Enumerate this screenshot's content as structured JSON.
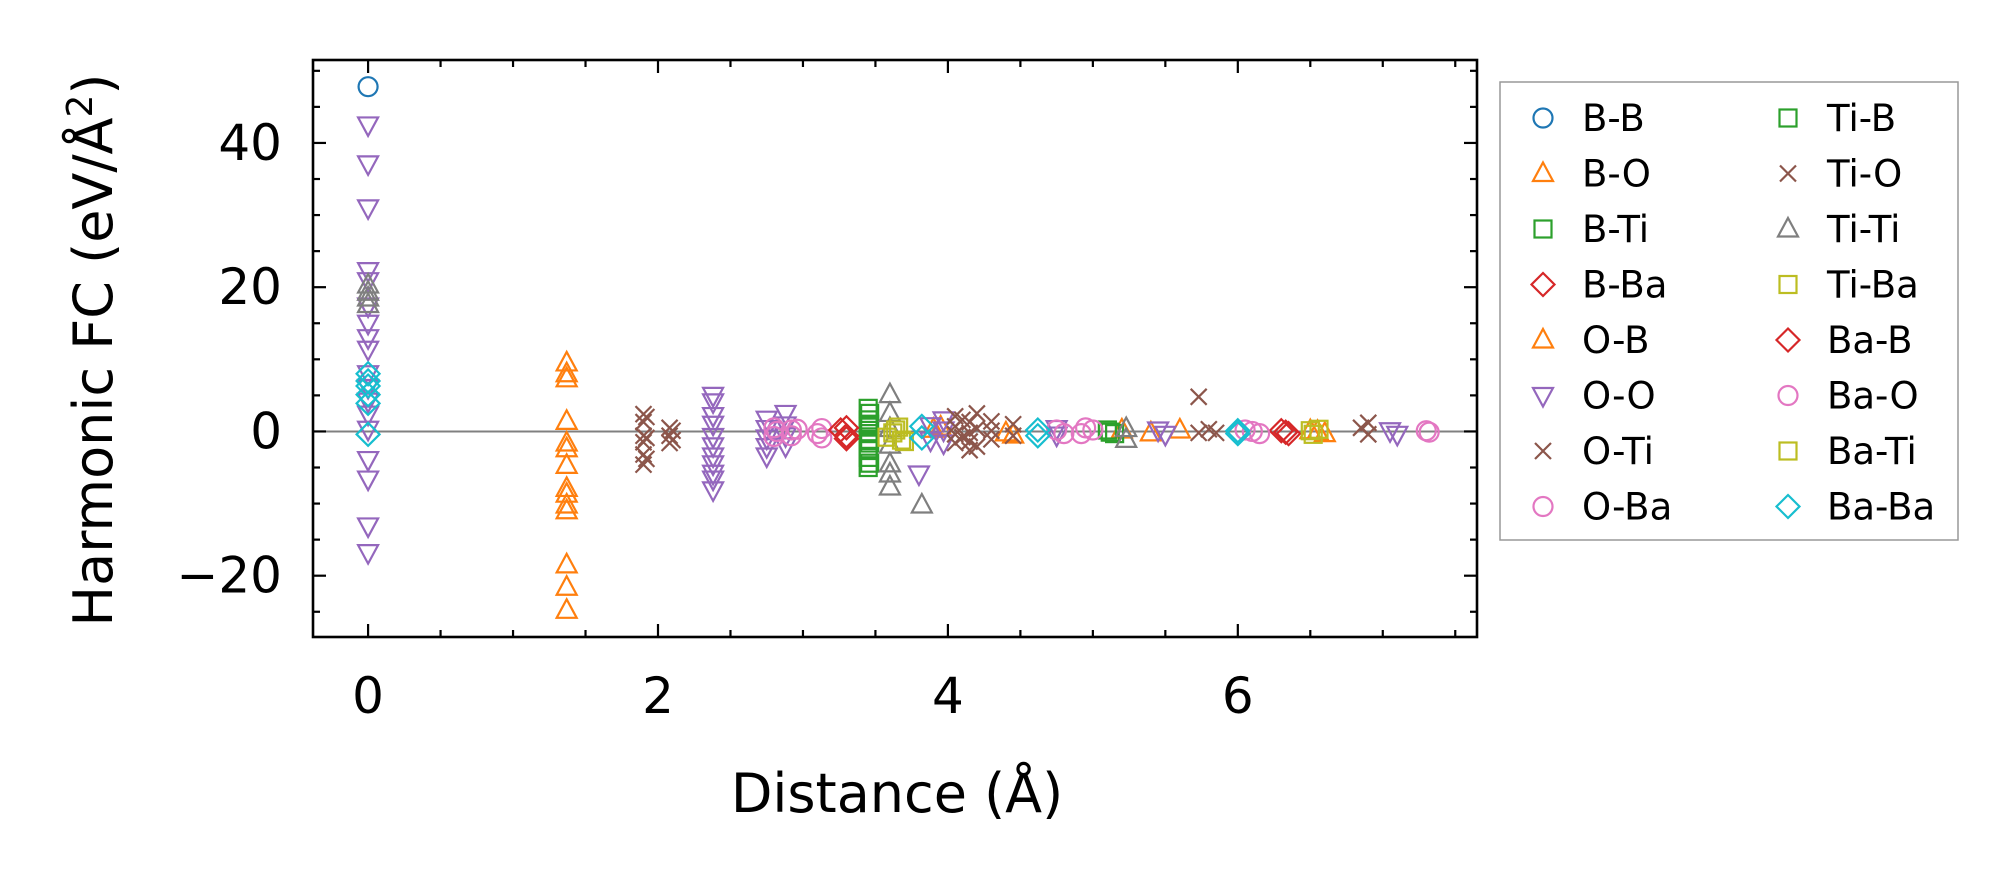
{
  "chart_data": {
    "type": "scatter",
    "xlabel": "Distance (Å)",
    "ylabel_main": "Harmonic FC (eV/Å",
    "ylabel_sup": "2",
    "ylabel_end": ")",
    "xlim": [
      -0.38,
      7.65
    ],
    "ylim": [
      -28.5,
      51.5
    ],
    "xticks": [
      0,
      2,
      4,
      6
    ],
    "yticks": [
      -20,
      0,
      20,
      40
    ],
    "xtick_labels": [
      "0",
      "2",
      "4",
      "6"
    ],
    "ytick_labels": [
      "−20",
      "0",
      "20",
      "40"
    ],
    "zero_line": 0,
    "grid": false,
    "legend_position": "outside-right",
    "legend_columns": 2,
    "series": [
      {
        "name": "B-B",
        "marker": "circle",
        "filled": false,
        "color": "#1f77b4",
        "points": [
          [
            0,
            47.8
          ]
        ]
      },
      {
        "name": "B-O",
        "marker": "triangle-up",
        "filled": false,
        "color": "#ff7f0e",
        "points": [
          [
            1.37,
            9.5
          ],
          [
            1.37,
            8.0
          ],
          [
            1.37,
            7.3
          ],
          [
            1.37,
            1.4
          ],
          [
            1.37,
            -1.6
          ],
          [
            1.37,
            -2.4
          ],
          [
            1.37,
            -4.7
          ],
          [
            1.37,
            -7.9
          ],
          [
            1.37,
            -8.7
          ],
          [
            1.37,
            -10.2
          ],
          [
            1.37,
            -11.0
          ],
          [
            1.37,
            -18.5
          ],
          [
            1.37,
            -21.6
          ],
          [
            1.37,
            -24.8
          ],
          [
            3.9,
            0.3
          ],
          [
            4.45,
            -0.5
          ],
          [
            5.2,
            0.2
          ],
          [
            5.4,
            -0.2
          ],
          [
            6.5,
            0.1
          ],
          [
            6.6,
            -0.3
          ]
        ]
      },
      {
        "name": "B-Ti",
        "marker": "square",
        "filled": false,
        "color": "#2ca02c",
        "points": [
          [
            3.45,
            3.2
          ],
          [
            3.45,
            1.6
          ],
          [
            3.45,
            0.6
          ],
          [
            3.45,
            -0.3
          ],
          [
            3.45,
            -1.1
          ],
          [
            3.45,
            -2.4
          ],
          [
            3.45,
            -3.6
          ],
          [
            3.45,
            -5.0
          ],
          [
            5.1,
            0.2
          ],
          [
            5.15,
            -0.3
          ]
        ]
      },
      {
        "name": "B-Ba",
        "marker": "diamond",
        "filled": false,
        "color": "#d62728",
        "points": [
          [
            3.3,
            0.5
          ],
          [
            3.3,
            -0.6
          ],
          [
            6.3,
            0.1
          ],
          [
            6.35,
            -0.3
          ]
        ]
      },
      {
        "name": "O-B",
        "marker": "triangle-up",
        "filled": false,
        "color": "#ff7f0e",
        "points": [
          [
            3.95,
            0.6
          ],
          [
            4.4,
            -0.2
          ],
          [
            5.6,
            0.2
          ],
          [
            6.55,
            0.0
          ]
        ]
      },
      {
        "name": "O-O",
        "marker": "triangle-down",
        "filled": false,
        "color": "#9467bd",
        "points": [
          [
            0,
            42.5
          ],
          [
            0,
            37.1
          ],
          [
            0,
            31.0
          ],
          [
            0,
            22.3
          ],
          [
            0,
            20.9
          ],
          [
            0,
            17.4
          ],
          [
            0,
            15.0
          ],
          [
            0,
            13.0
          ],
          [
            0,
            11.4
          ],
          [
            0,
            8.0
          ],
          [
            0,
            6.1
          ],
          [
            0,
            4.2
          ],
          [
            0,
            2.4
          ],
          [
            0,
            0.3
          ],
          [
            0,
            -3.9
          ],
          [
            0,
            -6.6
          ],
          [
            0,
            -13.1
          ],
          [
            0,
            -16.8
          ],
          [
            2.38,
            5.0
          ],
          [
            2.38,
            4.1
          ],
          [
            2.38,
            2.2
          ],
          [
            2.38,
            1.0
          ],
          [
            2.38,
            -0.7
          ],
          [
            2.38,
            -2.0
          ],
          [
            2.38,
            -3.4
          ],
          [
            2.38,
            -4.5
          ],
          [
            2.38,
            -5.8
          ],
          [
            2.38,
            -6.6
          ],
          [
            2.38,
            -8.1
          ],
          [
            2.75,
            1.7
          ],
          [
            2.75,
            0.4
          ],
          [
            2.75,
            -0.9
          ],
          [
            2.75,
            -2.1
          ],
          [
            2.75,
            -3.4
          ],
          [
            2.88,
            2.5
          ],
          [
            2.88,
            0.9
          ],
          [
            2.88,
            -0.6
          ],
          [
            2.88,
            -2.0
          ],
          [
            3.8,
            -5.9
          ],
          [
            3.88,
            0.8
          ],
          [
            3.88,
            -1.2
          ],
          [
            3.97,
            1.6
          ],
          [
            3.97,
            0.2
          ],
          [
            3.97,
            -1.6
          ],
          [
            4.75,
            0.4
          ],
          [
            4.75,
            -0.5
          ],
          [
            5.45,
            0.2
          ],
          [
            5.5,
            -0.4
          ],
          [
            7.05,
            0.1
          ],
          [
            7.1,
            -0.4
          ]
        ]
      },
      {
        "name": "O-Ti",
        "marker": "x",
        "filled": false,
        "color": "#8c564b",
        "points": [
          [
            1.9,
            2.4
          ],
          [
            1.9,
            1.3
          ],
          [
            1.9,
            -0.6
          ],
          [
            1.9,
            -1.5
          ],
          [
            1.9,
            -3.2
          ],
          [
            1.9,
            -4.6
          ],
          [
            2.08,
            0.5
          ],
          [
            2.08,
            -0.6
          ],
          [
            2.08,
            -1.6
          ],
          [
            4.05,
            2.1
          ],
          [
            4.05,
            0.7
          ],
          [
            4.05,
            -0.4
          ],
          [
            4.05,
            -1.6
          ],
          [
            4.15,
            1.3
          ],
          [
            4.15,
            -0.2
          ],
          [
            4.15,
            -1.4
          ],
          [
            4.15,
            -2.6
          ],
          [
            4.3,
            1.4
          ],
          [
            4.3,
            0.1
          ],
          [
            4.3,
            -1.1
          ],
          [
            4.45,
            1.0
          ],
          [
            4.45,
            -0.6
          ],
          [
            5.73,
            4.8
          ],
          [
            5.73,
            -0.2
          ],
          [
            6.9,
            1.2
          ],
          [
            6.9,
            -0.4
          ]
        ]
      },
      {
        "name": "O-Ba",
        "marker": "circle",
        "filled": false,
        "color": "#e377c2",
        "points": [
          [
            2.8,
            0.5
          ],
          [
            2.8,
            -0.7
          ],
          [
            2.92,
            0.2
          ],
          [
            2.92,
            -0.6
          ],
          [
            3.13,
            0.4
          ],
          [
            3.13,
            -0.9
          ],
          [
            4.75,
            0.2
          ],
          [
            4.92,
            -0.3
          ],
          [
            4.95,
            0.5
          ],
          [
            6.05,
            0.2
          ],
          [
            6.15,
            -0.3
          ],
          [
            7.32,
            -0.1
          ]
        ]
      },
      {
        "name": "Ti-B",
        "marker": "square",
        "filled": false,
        "color": "#2ca02c",
        "points": [
          [
            3.46,
            2.5
          ],
          [
            3.46,
            1.0
          ],
          [
            3.46,
            -1.6
          ],
          [
            3.46,
            -4.4
          ],
          [
            5.12,
            -0.1
          ]
        ]
      },
      {
        "name": "Ti-O",
        "marker": "x",
        "filled": false,
        "color": "#8c564b",
        "points": [
          [
            1.92,
            2.0
          ],
          [
            1.92,
            -0.9
          ],
          [
            1.92,
            -3.8
          ],
          [
            2.1,
            0.1
          ],
          [
            2.1,
            -1.2
          ],
          [
            4.1,
            1.6
          ],
          [
            4.1,
            -0.8
          ],
          [
            4.2,
            2.5
          ],
          [
            4.2,
            0.4
          ],
          [
            4.2,
            -2.1
          ],
          [
            5.8,
            0.3
          ],
          [
            5.85,
            -0.2
          ],
          [
            6.85,
            0.5
          ]
        ]
      },
      {
        "name": "Ti-Ti",
        "marker": "triangle-up",
        "filled": false,
        "color": "#7f7f7f",
        "points": [
          [
            0,
            20.3
          ],
          [
            0,
            19.3
          ],
          [
            0,
            18.5
          ],
          [
            0,
            17.6
          ],
          [
            3.6,
            5.1
          ],
          [
            3.6,
            2.5
          ],
          [
            3.6,
            0.4
          ],
          [
            3.6,
            -1.9
          ],
          [
            3.6,
            -4.5
          ],
          [
            3.6,
            -5.9
          ],
          [
            3.6,
            -7.7
          ],
          [
            3.82,
            -10.2
          ],
          [
            5.23,
            0.4
          ],
          [
            5.23,
            -1.1
          ]
        ]
      },
      {
        "name": "Ti-Ba",
        "marker": "square",
        "filled": false,
        "color": "#bcbd22",
        "points": [
          [
            3.58,
            -0.8
          ],
          [
            3.62,
            -0.2
          ],
          [
            3.66,
            0.6
          ],
          [
            3.7,
            -1.4
          ],
          [
            6.52,
            -0.4
          ],
          [
            6.56,
            0.3
          ]
        ]
      },
      {
        "name": "Ba-B",
        "marker": "diamond",
        "filled": false,
        "color": "#d62728",
        "points": [
          [
            3.26,
            0.2
          ],
          [
            3.3,
            -1.0
          ],
          [
            6.33,
            -0.1
          ]
        ]
      },
      {
        "name": "Ba-O",
        "marker": "circle",
        "filled": false,
        "color": "#e377c2",
        "points": [
          [
            2.82,
            0.0
          ],
          [
            2.96,
            0.3
          ],
          [
            3.1,
            -0.3
          ],
          [
            4.8,
            -0.3
          ],
          [
            5.0,
            0.2
          ],
          [
            6.1,
            0.0
          ],
          [
            7.3,
            0.1
          ]
        ]
      },
      {
        "name": "Ba-Ti",
        "marker": "square",
        "filled": false,
        "color": "#bcbd22",
        "points": [
          [
            3.64,
            0.2
          ],
          [
            3.68,
            -1.2
          ],
          [
            6.5,
            0.1
          ]
        ]
      },
      {
        "name": "Ba-Ba",
        "marker": "diamond",
        "filled": false,
        "color": "#17becf",
        "points": [
          [
            0,
            8.0
          ],
          [
            0,
            7.0
          ],
          [
            0,
            6.3
          ],
          [
            0,
            5.1
          ],
          [
            0,
            3.9
          ],
          [
            0,
            -0.4
          ],
          [
            3.82,
            0.7
          ],
          [
            3.82,
            -0.9
          ],
          [
            4.62,
            0.2
          ],
          [
            4.62,
            -0.6
          ],
          [
            6.0,
            0.1
          ],
          [
            6.0,
            -0.3
          ]
        ]
      }
    ]
  }
}
